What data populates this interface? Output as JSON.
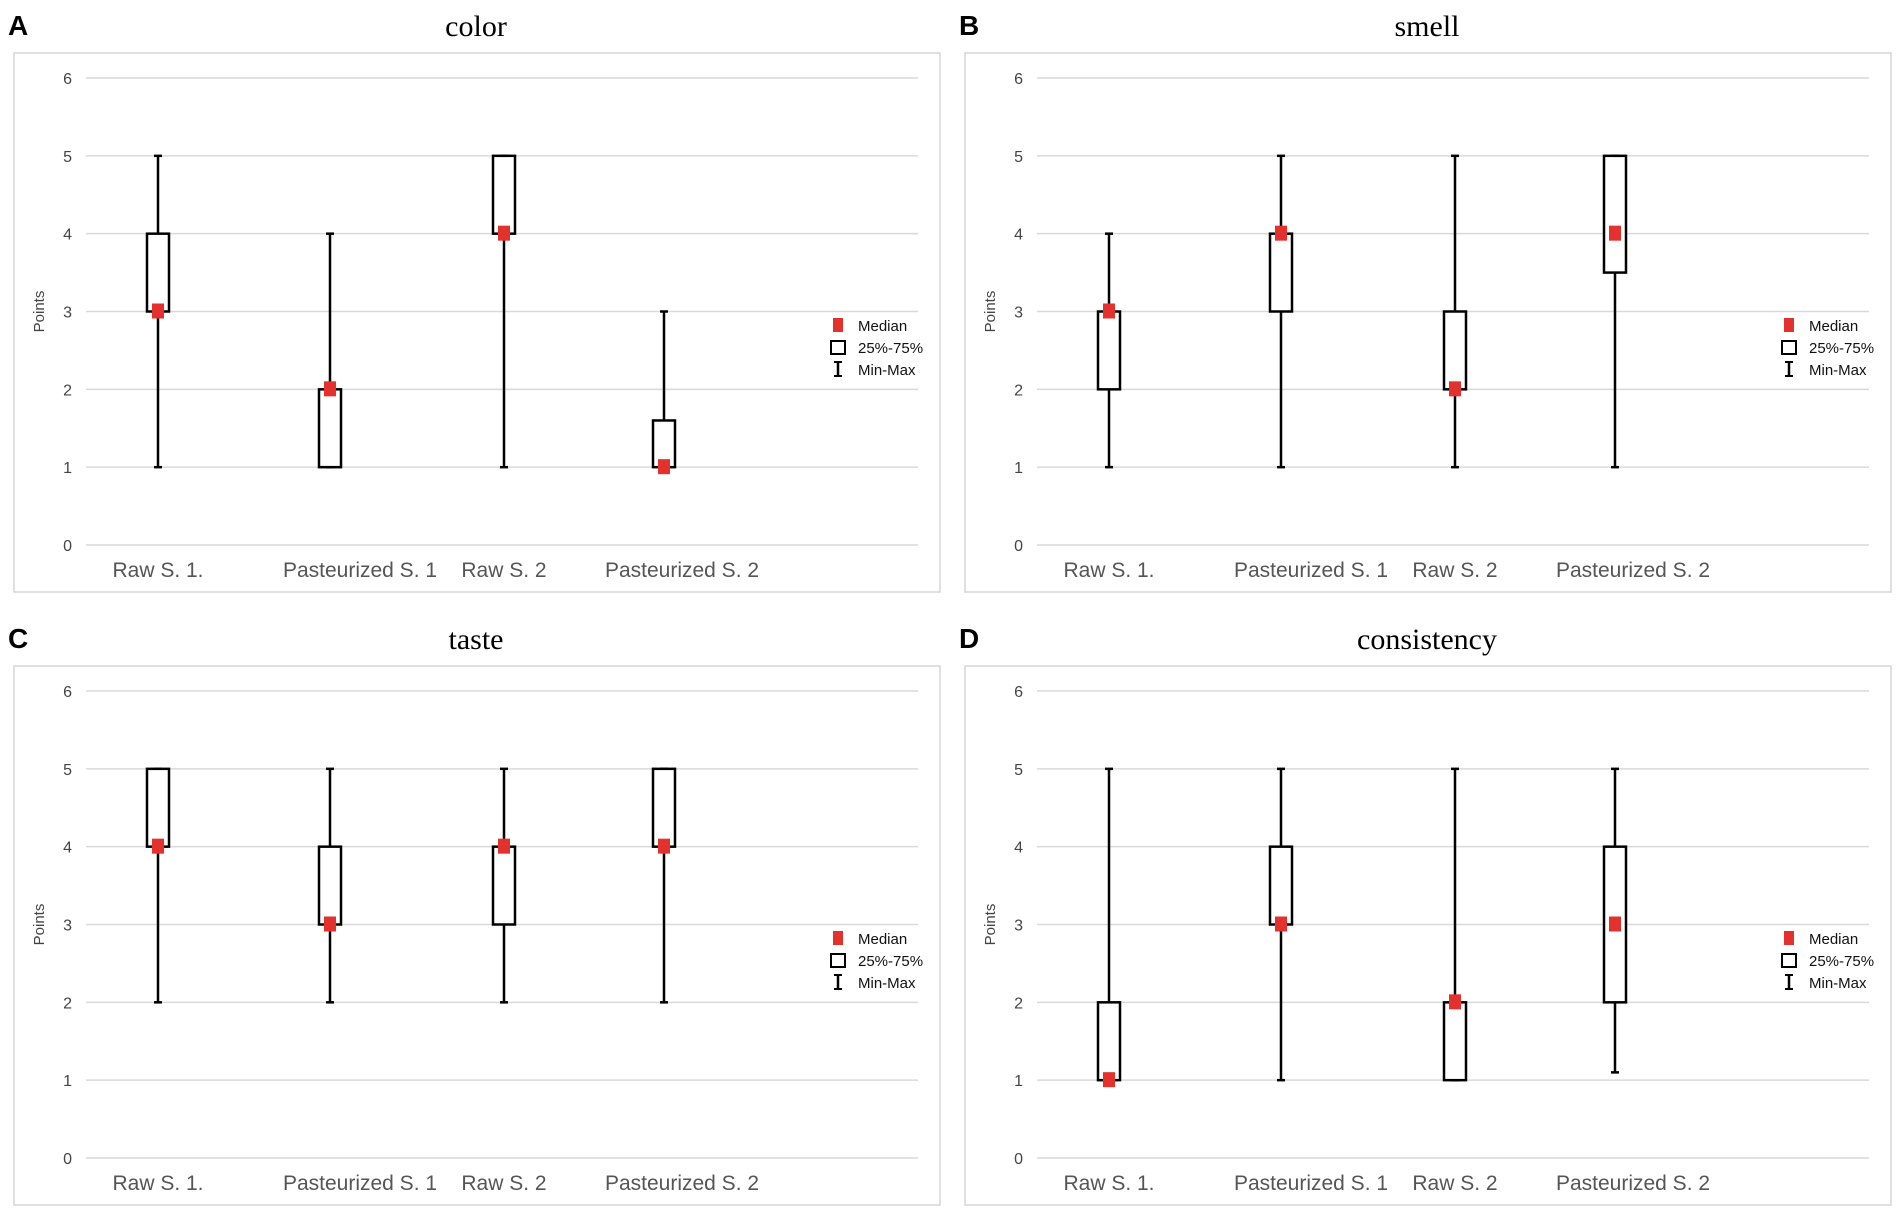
{
  "chart_data": [
    {
      "type": "boxplot",
      "letter": "A",
      "title": "color",
      "ylabel": "Points",
      "ylim": [
        0,
        6
      ],
      "yticks": [
        "0",
        "1",
        "2",
        "3",
        "4",
        "5",
        "6"
      ],
      "categories": [
        "Raw S. 1.",
        "Pasteurized S. 1",
        "Raw S. 2",
        "Pasteurized S. 2"
      ],
      "min": [
        1,
        1,
        1,
        1
      ],
      "q1": [
        3,
        1,
        4,
        1
      ],
      "median": [
        3,
        2,
        4,
        1
      ],
      "q3": [
        4,
        2,
        5,
        1.6
      ],
      "max": [
        5,
        4,
        5,
        3
      ],
      "legend": [
        "Median",
        "25%-75%",
        "Min-Max"
      ],
      "median_color": "#e3312e"
    },
    {
      "type": "boxplot",
      "letter": "B",
      "title": "smell",
      "ylabel": "Points",
      "ylim": [
        0,
        6
      ],
      "yticks": [
        "0",
        "1",
        "2",
        "3",
        "4",
        "5",
        "6"
      ],
      "categories": [
        "Raw S. 1.",
        "Pasteurized S. 1",
        "Raw S. 2",
        "Pasteurized S. 2"
      ],
      "min": [
        1,
        1,
        1,
        1
      ],
      "q1": [
        2,
        3,
        2,
        3.5
      ],
      "median": [
        3,
        4,
        2,
        4
      ],
      "q3": [
        3,
        4,
        3,
        5
      ],
      "max": [
        4,
        5,
        5,
        5
      ],
      "legend": [
        "Median",
        "25%-75%",
        "Min-Max"
      ],
      "median_color": "#e3312e"
    },
    {
      "type": "boxplot",
      "letter": "C",
      "title": "taste",
      "ylabel": "Points",
      "ylim": [
        0,
        6
      ],
      "yticks": [
        "0",
        "1",
        "2",
        "3",
        "4",
        "5",
        "6"
      ],
      "categories": [
        "Raw S. 1.",
        "Pasteurized S. 1",
        "Raw S. 2",
        "Pasteurized S. 2"
      ],
      "min": [
        2,
        2,
        2,
        2
      ],
      "q1": [
        4,
        3,
        3,
        4
      ],
      "median": [
        4,
        3,
        4,
        4
      ],
      "q3": [
        5,
        4,
        4,
        5
      ],
      "max": [
        5,
        5,
        5,
        5
      ],
      "legend": [
        "Median",
        "25%-75%",
        "Min-Max"
      ],
      "median_color": "#e3312e"
    },
    {
      "type": "boxplot",
      "letter": "D",
      "title": "consistency",
      "ylabel": "Points",
      "ylim": [
        0,
        6
      ],
      "yticks": [
        "0",
        "1",
        "2",
        "3",
        "4",
        "5",
        "6"
      ],
      "categories": [
        "Raw S. 1.",
        "Pasteurized S. 1",
        "Raw S. 2",
        "Pasteurized S. 2"
      ],
      "min": [
        1,
        1,
        1,
        1.1
      ],
      "q1": [
        1,
        3,
        1,
        2
      ],
      "median": [
        1,
        3,
        2,
        3
      ],
      "q3": [
        2,
        4,
        2,
        4
      ],
      "max": [
        5,
        5,
        5,
        5
      ],
      "legend": [
        "Median",
        "25%-75%",
        "Min-Max"
      ],
      "median_color": "#e3312e"
    }
  ]
}
